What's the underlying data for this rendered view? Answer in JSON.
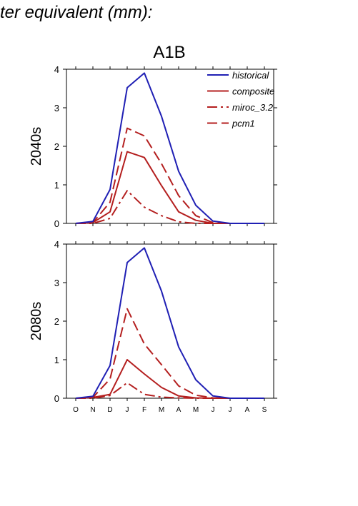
{
  "header": {
    "text": "ter equivalent (mm):"
  },
  "chart_data": {
    "type": "line",
    "title": "A1B",
    "categories": [
      "O",
      "N",
      "D",
      "J",
      "F",
      "M",
      "A",
      "M",
      "J",
      "J",
      "A",
      "S"
    ],
    "ylim": [
      0,
      4
    ],
    "yticks": [
      0,
      1,
      2,
      3,
      4
    ],
    "grid": false,
    "legend": {
      "placement": "top-right",
      "entries": [
        {
          "key": "historical",
          "label": "historical",
          "color": "#1f1fb4",
          "dash": "solid"
        },
        {
          "key": "composite",
          "label": "composite",
          "color": "#b41f1f",
          "dash": "solid"
        },
        {
          "key": "miroc_3_2",
          "label": "miroc_3.2",
          "color": "#b41f1f",
          "dash": "dashdot"
        },
        {
          "key": "pcm1",
          "label": "pcm1",
          "color": "#b41f1f",
          "dash": "dashed"
        }
      ]
    },
    "panels": [
      {
        "ylabel": "2040s",
        "series": [
          {
            "name": "historical",
            "values": [
              0,
              0.05,
              0.88,
              3.52,
              3.9,
              2.78,
              1.35,
              0.47,
              0.06,
              0,
              0,
              0
            ]
          },
          {
            "name": "composite",
            "values": [
              0,
              0.02,
              0.3,
              1.86,
              1.71,
              0.98,
              0.3,
              0.08,
              0,
              0,
              0,
              0
            ]
          },
          {
            "name": "miroc_3.2",
            "values": [
              0,
              0,
              0.13,
              0.85,
              0.42,
              0.2,
              0.04,
              0,
              0,
              0,
              0,
              0
            ]
          },
          {
            "name": "pcm1",
            "values": [
              0,
              0.02,
              0.55,
              2.47,
              2.27,
              1.55,
              0.72,
              0.2,
              0.02,
              0,
              0,
              0
            ]
          }
        ]
      },
      {
        "ylabel": "2080s",
        "series": [
          {
            "name": "historical",
            "values": [
              0,
              0.05,
              0.85,
              3.52,
              3.9,
              2.78,
              1.33,
              0.48,
              0.06,
              0,
              0,
              0
            ]
          },
          {
            "name": "composite",
            "values": [
              0,
              0.02,
              0.1,
              1.0,
              0.63,
              0.28,
              0.06,
              0.01,
              0,
              0,
              0,
              0
            ]
          },
          {
            "name": "miroc_3.2",
            "values": [
              0,
              0,
              0.07,
              0.4,
              0.1,
              0.03,
              0.01,
              0,
              0,
              0,
              0,
              0
            ]
          },
          {
            "name": "pcm1",
            "values": [
              0,
              0.02,
              0.5,
              2.32,
              1.41,
              0.87,
              0.32,
              0.08,
              0.01,
              0,
              0,
              0
            ]
          }
        ]
      }
    ]
  }
}
